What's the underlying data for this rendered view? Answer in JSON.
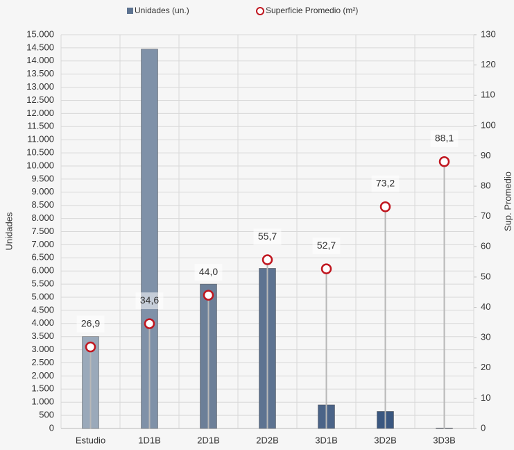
{
  "chart_data": {
    "type": "bar-lollipop",
    "categories": [
      "Estudio",
      "1D1B",
      "2D1B",
      "2D2B",
      "3D1B",
      "3D2B",
      "3D3B"
    ],
    "series": [
      {
        "name": "Unidades (un.)",
        "color": "#5d7391",
        "colors": [
          "#9aa9ba",
          "#7f91a8",
          "#6c7f98",
          "#5d7391",
          "#4b6488",
          "#3a5780",
          "#2d4a74"
        ],
        "values": [
          3500,
          14450,
          5500,
          6100,
          900,
          650,
          20
        ]
      },
      {
        "name": "Superficie Promedio (m²)",
        "color": "#c0161f",
        "axis": "y2",
        "values": [
          26.9,
          34.6,
          44.0,
          55.7,
          52.7,
          73.2,
          88.1
        ],
        "value_labels": [
          "26,9",
          "34,6",
          "44,0",
          "55,7",
          "52,7",
          "73,2",
          "88,1"
        ]
      }
    ],
    "ylabel": "Unidades",
    "y2label": "Sup. Promedio",
    "ylim": [
      0,
      15000
    ],
    "yticks": [
      0,
      500,
      {
        "value": 1000,
        "label": "1.000"
      },
      {
        "value": 1500,
        "label": "1.500"
      },
      {
        "value": 2000,
        "label": "2.000"
      },
      {
        "value": 2500,
        "label": "2.500"
      },
      {
        "value": 3000,
        "label": "3.000"
      },
      {
        "value": 3500,
        "label": "3.500"
      },
      {
        "value": 4000,
        "label": "4.000"
      },
      {
        "value": 4500,
        "label": "4.500"
      },
      {
        "value": 5000,
        "label": "5.000"
      },
      {
        "value": 5500,
        "label": "5.500"
      },
      {
        "value": 6000,
        "label": "6.000"
      },
      {
        "value": 6500,
        "label": "6.500"
      },
      {
        "value": 7000,
        "label": "7.000"
      },
      {
        "value": 7500,
        "label": "7.500"
      },
      {
        "value": 8000,
        "label": "8.000"
      },
      {
        "value": 8500,
        "label": "8.500"
      },
      {
        "value": 9000,
        "label": "9.000"
      },
      {
        "value": 9500,
        "label": "9.500"
      },
      {
        "value": 10000,
        "label": "10.000"
      },
      {
        "value": 10500,
        "label": "10.500"
      },
      {
        "value": 11000,
        "label": "11.000"
      },
      {
        "value": 11500,
        "label": "11.500"
      },
      {
        "value": 12000,
        "label": "12.000"
      },
      {
        "value": 12500,
        "label": "12.500"
      },
      {
        "value": 13000,
        "label": "13.000"
      },
      {
        "value": 13500,
        "label": "13.500"
      },
      {
        "value": 14000,
        "label": "14.000"
      },
      {
        "value": 14500,
        "label": "14.500"
      },
      {
        "value": 15000,
        "label": "15.000"
      }
    ],
    "y2lim": [
      0,
      130
    ],
    "y2ticks": [
      0,
      10,
      20,
      30,
      40,
      50,
      60,
      70,
      80,
      90,
      100,
      110,
      120,
      130
    ],
    "grid": true,
    "legend": "top"
  }
}
